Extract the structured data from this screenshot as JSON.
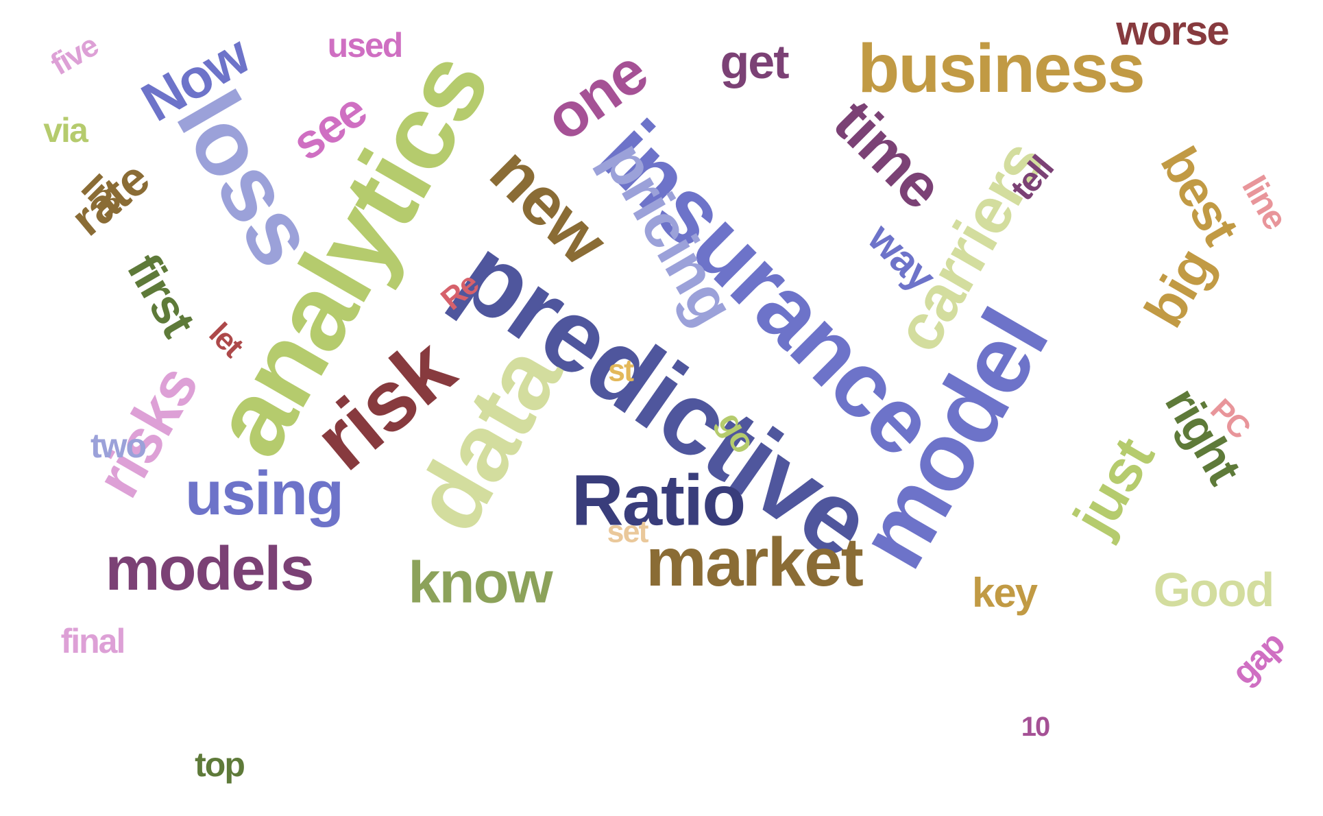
{
  "words": [
    {
      "text": "predictive",
      "color": "#4f569d"
    },
    {
      "text": "analytics",
      "color": "#b5cb6d"
    },
    {
      "text": "insurance",
      "color": "#6d73c9"
    },
    {
      "text": "model",
      "color": "#6d73c9"
    },
    {
      "text": "data",
      "color": "#d3dd9e"
    },
    {
      "text": "loss",
      "color": "#9ba1d9"
    },
    {
      "text": "risk",
      "color": "#873a3e"
    },
    {
      "text": "Ratio",
      "color": "#393d7b"
    },
    {
      "text": "business",
      "color": "#c19a44"
    },
    {
      "text": "market",
      "color": "#8a6c35"
    },
    {
      "text": "new",
      "color": "#8a6c35"
    },
    {
      "text": "models",
      "color": "#7b4175"
    },
    {
      "text": "using",
      "color": "#6d73c9"
    },
    {
      "text": "carriers",
      "color": "#d3dd9e"
    },
    {
      "text": "time",
      "color": "#7b4175"
    },
    {
      "text": "pricing",
      "color": "#9ba1d9"
    },
    {
      "text": "risks",
      "color": "#dda0d6"
    },
    {
      "text": "one",
      "color": "#a55195"
    },
    {
      "text": "just",
      "color": "#b5cb6d"
    },
    {
      "text": "know",
      "color": "#8ca25a"
    },
    {
      "text": "see",
      "color": "#cf6fc2"
    },
    {
      "text": "Now",
      "color": "#6d73c9"
    },
    {
      "text": "get",
      "color": "#7b4175"
    },
    {
      "text": "big",
      "color": "#c19a44"
    },
    {
      "text": "best",
      "color": "#c19a44"
    },
    {
      "text": "right",
      "color": "#5e7a39"
    },
    {
      "text": "first",
      "color": "#5e7a39"
    },
    {
      "text": "rate",
      "color": "#8a6c35"
    },
    {
      "text": "way",
      "color": "#6d73c9"
    },
    {
      "text": "Good",
      "color": "#d3dd9e"
    },
    {
      "text": "worse",
      "color": "#873a3e"
    },
    {
      "text": "key",
      "color": "#c19a44"
    },
    {
      "text": "two",
      "color": "#9ba1d9"
    },
    {
      "text": "final",
      "color": "#dda0d6"
    },
    {
      "text": "used",
      "color": "#cf6fc2"
    },
    {
      "text": "top",
      "color": "#5e7a39"
    },
    {
      "text": "line",
      "color": "#e8959a"
    },
    {
      "text": "tell",
      "color": "#7b4175"
    },
    {
      "text": "Im",
      "color": "#8a6c35"
    },
    {
      "text": "via",
      "color": "#b5cb6d"
    },
    {
      "text": "five",
      "color": "#dda0d6"
    },
    {
      "text": "go",
      "color": "#b5cb6d"
    },
    {
      "text": "st",
      "color": "#e3b85a"
    },
    {
      "text": "set",
      "color": "#eac89a"
    },
    {
      "text": "let",
      "color": "#ad494a"
    },
    {
      "text": "Re",
      "color": "#d6616b"
    },
    {
      "text": "PC",
      "color": "#e8959a"
    },
    {
      "text": "gap",
      "color": "#cf6fc2"
    },
    {
      "text": "10",
      "color": "#a55195"
    }
  ]
}
